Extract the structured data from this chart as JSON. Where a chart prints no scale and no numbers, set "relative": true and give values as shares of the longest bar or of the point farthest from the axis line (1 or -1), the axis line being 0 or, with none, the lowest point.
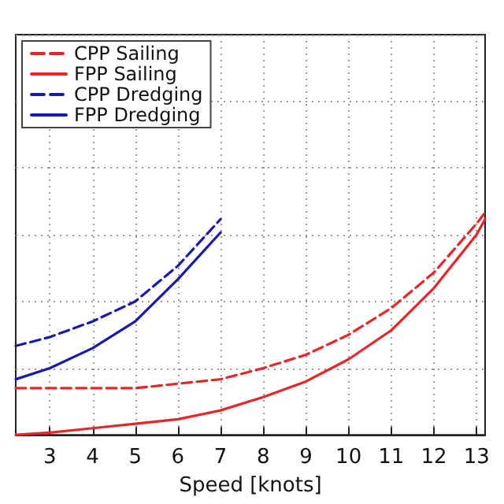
{
  "chart_data": {
    "type": "line",
    "xlabel": "Speed [knots]",
    "relative": true,
    "xlim": [
      2.2,
      13.2
    ],
    "xticks": [
      3,
      4,
      5,
      6,
      7,
      8,
      9,
      10,
      11,
      12,
      13
    ],
    "grid": true,
    "legend": "top left",
    "marker": "none",
    "series": [
      {
        "name": "CPP Sailing",
        "color": "#e8262a",
        "line_style": "dashed",
        "x": [
          2.2,
          3,
          4,
          5,
          6,
          7,
          8,
          9,
          10,
          11,
          12,
          13,
          13.2
        ],
        "values": [
          0.21,
          0.21,
          0.21,
          0.21,
          0.23,
          0.25,
          0.3,
          0.36,
          0.45,
          0.57,
          0.73,
          0.95,
          1
        ]
      },
      {
        "name": "FPP Sailing",
        "color": "#e8262a",
        "line_style": "solid",
        "x": [
          2.2,
          3,
          4,
          5,
          6,
          7,
          8,
          9,
          10,
          11,
          12,
          13,
          13.2
        ],
        "values": [
          0,
          0.01,
          0.03,
          0.05,
          0.07,
          0.11,
          0.17,
          0.24,
          0.34,
          0.47,
          0.66,
          0.9,
          0.97
        ]
      },
      {
        "name": "CPP Dredging",
        "color": "#1a1aa8",
        "line_style": "dashed",
        "x": [
          2.2,
          3,
          4,
          5,
          6,
          7
        ],
        "values": [
          0.4,
          0.44,
          0.51,
          0.6,
          0.76,
          0.97
        ]
      },
      {
        "name": "FPP Dredging",
        "color": "#1a1aa8",
        "line_style": "solid",
        "x": [
          2.2,
          3,
          4,
          5,
          6,
          7
        ],
        "values": [
          0.25,
          0.3,
          0.39,
          0.51,
          0.7,
          0.91
        ]
      }
    ]
  }
}
